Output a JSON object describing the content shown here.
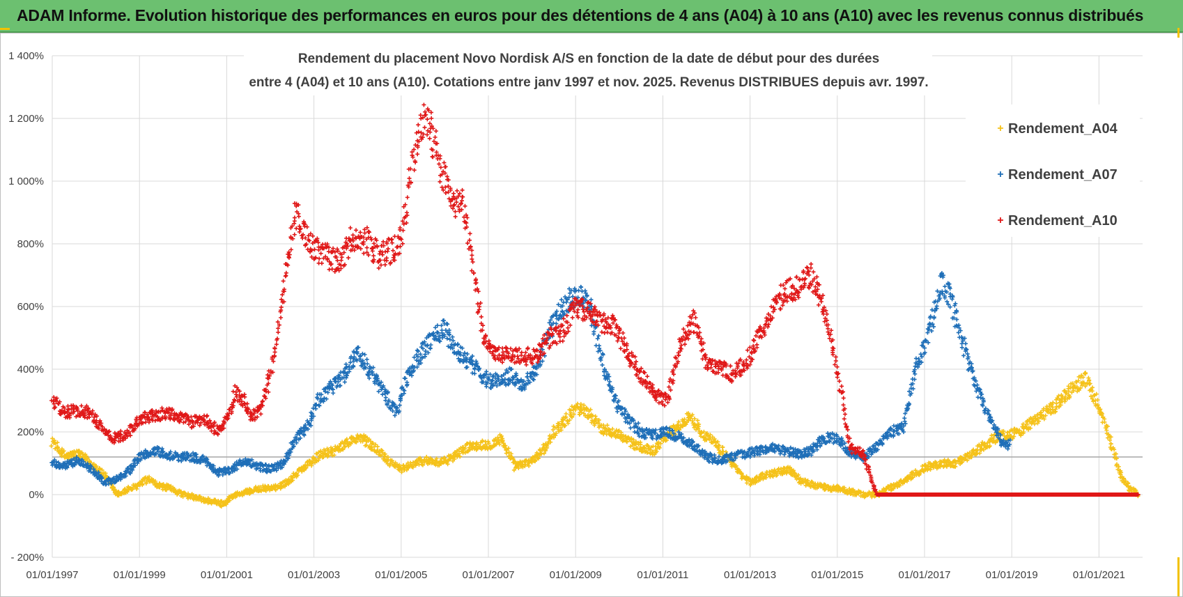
{
  "banner": {
    "title": "ADAM Informe. Evolution historique des performances en euros pour des détentions de 4 ans (A04) à 10 ans (A10) avec les revenus connus distribués"
  },
  "colors": {
    "banner_bg": "#6cc070",
    "A04": "#f5c21a",
    "A07": "#1f6fb8",
    "A10": "#e01818",
    "grid": "#d9d9d9",
    "baseline": "#a6a6a6"
  },
  "chart_data": {
    "type": "scatter",
    "title_lines": [
      "Rendement du placement Novo Nordisk A/S en fonction de la date de début pour des durées",
      "entre 4 (A04) et 10 ans (A10). Cotations entre janv 1997 et nov. 2025. Revenus DISTRIBUES depuis avr. 1997."
    ],
    "xlabel": "",
    "ylabel": "",
    "xlim": [
      1997.0,
      2022.0
    ],
    "ylim": [
      -200,
      1400
    ],
    "x_ticks": [
      1997,
      1999,
      2001,
      2003,
      2005,
      2007,
      2009,
      2011,
      2013,
      2015,
      2017,
      2019,
      2021
    ],
    "x_tick_labels": [
      "01/01/1997",
      "01/01/1999",
      "01/01/2001",
      "01/01/2003",
      "01/01/2005",
      "01/01/2007",
      "01/01/2009",
      "01/01/2011",
      "01/01/2013",
      "01/01/2015",
      "01/01/2017",
      "01/01/2019",
      "01/01/2021"
    ],
    "y_ticks": [
      -200,
      0,
      200,
      400,
      600,
      800,
      1000,
      1200,
      1400
    ],
    "y_tick_labels": [
      "- 200%",
      "0%",
      "200%",
      "400%",
      "600%",
      "800%",
      "1 000%",
      "1 200%",
      "1 400%"
    ],
    "reference_line": {
      "y": 120
    },
    "grid": true,
    "legend_position": "top-right",
    "marker": "+",
    "series": [
      {
        "name": "Rendement_A04",
        "color": "#f5c21a",
        "points": [
          [
            1997.0,
            170
          ],
          [
            1997.3,
            120
          ],
          [
            1997.6,
            130
          ],
          [
            1997.9,
            100
          ],
          [
            1998.2,
            60
          ],
          [
            1998.5,
            0
          ],
          [
            1998.8,
            20
          ],
          [
            1999.0,
            30
          ],
          [
            1999.2,
            50
          ],
          [
            1999.4,
            30
          ],
          [
            1999.7,
            20
          ],
          [
            2000.0,
            0
          ],
          [
            2000.3,
            -10
          ],
          [
            2000.6,
            -20
          ],
          [
            2000.9,
            -30
          ],
          [
            2001.2,
            0
          ],
          [
            2001.5,
            10
          ],
          [
            2001.8,
            20
          ],
          [
            2002.1,
            20
          ],
          [
            2002.4,
            40
          ],
          [
            2002.7,
            80
          ],
          [
            2003.0,
            110
          ],
          [
            2003.2,
            130
          ],
          [
            2003.5,
            140
          ],
          [
            2003.8,
            170
          ],
          [
            2004.1,
            180
          ],
          [
            2004.4,
            150
          ],
          [
            2004.7,
            110
          ],
          [
            2005.0,
            80
          ],
          [
            2005.3,
            100
          ],
          [
            2005.6,
            110
          ],
          [
            2005.9,
            100
          ],
          [
            2006.2,
            120
          ],
          [
            2006.5,
            150
          ],
          [
            2006.8,
            160
          ],
          [
            2007.1,
            160
          ],
          [
            2007.3,
            180
          ],
          [
            2007.6,
            90
          ],
          [
            2007.9,
            100
          ],
          [
            2008.2,
            130
          ],
          [
            2008.5,
            200
          ],
          [
            2008.8,
            240
          ],
          [
            2009.0,
            280
          ],
          [
            2009.3,
            260
          ],
          [
            2009.6,
            210
          ],
          [
            2009.9,
            200
          ],
          [
            2010.2,
            170
          ],
          [
            2010.5,
            150
          ],
          [
            2010.8,
            140
          ],
          [
            2011.0,
            180
          ],
          [
            2011.3,
            210
          ],
          [
            2011.6,
            250
          ],
          [
            2011.9,
            200
          ],
          [
            2012.2,
            160
          ],
          [
            2012.5,
            120
          ],
          [
            2012.8,
            60
          ],
          [
            2013.0,
            40
          ],
          [
            2013.3,
            60
          ],
          [
            2013.6,
            70
          ],
          [
            2013.9,
            80
          ],
          [
            2014.2,
            40
          ],
          [
            2014.5,
            30
          ],
          [
            2014.8,
            20
          ],
          [
            2015.0,
            20
          ],
          [
            2015.3,
            10
          ],
          [
            2015.6,
            0
          ],
          [
            2015.9,
            0
          ],
          [
            2016.2,
            20
          ],
          [
            2016.5,
            40
          ],
          [
            2016.8,
            70
          ],
          [
            2017.1,
            90
          ],
          [
            2017.4,
            100
          ],
          [
            2017.7,
            100
          ],
          [
            2018.0,
            120
          ],
          [
            2018.3,
            150
          ],
          [
            2018.6,
            180
          ],
          [
            2018.9,
            190
          ],
          [
            2019.2,
            200
          ],
          [
            2019.5,
            240
          ],
          [
            2019.8,
            260
          ],
          [
            2020.1,
            300
          ],
          [
            2020.4,
            340
          ],
          [
            2020.7,
            370
          ],
          [
            2021.0,
            280
          ],
          [
            2021.2,
            200
          ],
          [
            2021.5,
            60
          ],
          [
            2021.7,
            20
          ],
          [
            2021.9,
            0
          ]
        ]
      },
      {
        "name": "Rendement_A07",
        "color": "#1f6fb8",
        "points": [
          [
            1997.0,
            100
          ],
          [
            1997.3,
            90
          ],
          [
            1997.6,
            110
          ],
          [
            1997.9,
            80
          ],
          [
            1998.2,
            40
          ],
          [
            1998.5,
            50
          ],
          [
            1998.8,
            80
          ],
          [
            1999.0,
            120
          ],
          [
            1999.3,
            140
          ],
          [
            1999.6,
            130
          ],
          [
            1999.9,
            120
          ],
          [
            2000.2,
            120
          ],
          [
            2000.5,
            110
          ],
          [
            2000.8,
            70
          ],
          [
            2001.1,
            80
          ],
          [
            2001.4,
            110
          ],
          [
            2001.7,
            90
          ],
          [
            2002.0,
            80
          ],
          [
            2002.3,
            100
          ],
          [
            2002.6,
            180
          ],
          [
            2002.9,
            230
          ],
          [
            2003.1,
            300
          ],
          [
            2003.4,
            340
          ],
          [
            2003.7,
            380
          ],
          [
            2004.0,
            450
          ],
          [
            2004.3,
            390
          ],
          [
            2004.6,
            330
          ],
          [
            2004.9,
            260
          ],
          [
            2005.1,
            360
          ],
          [
            2005.4,
            440
          ],
          [
            2005.7,
            500
          ],
          [
            2006.0,
            530
          ],
          [
            2006.3,
            450
          ],
          [
            2006.6,
            420
          ],
          [
            2006.9,
            370
          ],
          [
            2007.2,
            360
          ],
          [
            2007.5,
            380
          ],
          [
            2007.8,
            350
          ],
          [
            2008.1,
            400
          ],
          [
            2008.4,
            520
          ],
          [
            2008.7,
            600
          ],
          [
            2009.0,
            640
          ],
          [
            2009.3,
            620
          ],
          [
            2009.6,
            430
          ],
          [
            2009.9,
            300
          ],
          [
            2010.2,
            240
          ],
          [
            2010.5,
            200
          ],
          [
            2010.8,
            190
          ],
          [
            2011.1,
            200
          ],
          [
            2011.4,
            180
          ],
          [
            2011.7,
            160
          ],
          [
            2012.0,
            120
          ],
          [
            2012.3,
            110
          ],
          [
            2012.6,
            120
          ],
          [
            2012.9,
            130
          ],
          [
            2013.2,
            140
          ],
          [
            2013.5,
            150
          ],
          [
            2013.8,
            140
          ],
          [
            2014.1,
            130
          ],
          [
            2014.4,
            140
          ],
          [
            2014.7,
            180
          ],
          [
            2015.0,
            180
          ],
          [
            2015.3,
            130
          ],
          [
            2015.6,
            120
          ],
          [
            2015.9,
            150
          ],
          [
            2016.2,
            200
          ],
          [
            2016.5,
            210
          ],
          [
            2016.8,
            400
          ],
          [
            2017.1,
            520
          ],
          [
            2017.4,
            680
          ],
          [
            2017.6,
            620
          ],
          [
            2017.9,
            470
          ],
          [
            2018.2,
            340
          ],
          [
            2018.5,
            240
          ],
          [
            2018.8,
            160
          ],
          [
            2018.95,
            160
          ]
        ]
      },
      {
        "name": "Rendement_A10",
        "color": "#e01818",
        "points": [
          [
            1997.0,
            300
          ],
          [
            1997.3,
            260
          ],
          [
            1997.6,
            270
          ],
          [
            1997.9,
            260
          ],
          [
            1998.1,
            220
          ],
          [
            1998.4,
            180
          ],
          [
            1998.7,
            190
          ],
          [
            1999.0,
            240
          ],
          [
            1999.3,
            250
          ],
          [
            1999.6,
            260
          ],
          [
            1999.9,
            250
          ],
          [
            2000.2,
            230
          ],
          [
            2000.5,
            240
          ],
          [
            2000.8,
            200
          ],
          [
            2001.0,
            240
          ],
          [
            2001.2,
            330
          ],
          [
            2001.4,
            300
          ],
          [
            2001.6,
            250
          ],
          [
            2001.8,
            280
          ],
          [
            2002.0,
            380
          ],
          [
            2002.2,
            550
          ],
          [
            2002.4,
            740
          ],
          [
            2002.6,
            900
          ],
          [
            2002.8,
            820
          ],
          [
            2003.0,
            780
          ],
          [
            2003.3,
            760
          ],
          [
            2003.6,
            740
          ],
          [
            2003.9,
            820
          ],
          [
            2004.2,
            810
          ],
          [
            2004.5,
            760
          ],
          [
            2004.8,
            780
          ],
          [
            2005.0,
            820
          ],
          [
            2005.2,
            1000
          ],
          [
            2005.4,
            1150
          ],
          [
            2005.6,
            1200
          ],
          [
            2005.8,
            1100
          ],
          [
            2006.0,
            1000
          ],
          [
            2006.2,
            920
          ],
          [
            2006.4,
            940
          ],
          [
            2006.6,
            750
          ],
          [
            2006.9,
            500
          ],
          [
            2007.2,
            440
          ],
          [
            2007.5,
            450
          ],
          [
            2007.8,
            440
          ],
          [
            2008.1,
            440
          ],
          [
            2008.4,
            500
          ],
          [
            2008.7,
            520
          ],
          [
            2009.0,
            600
          ],
          [
            2009.3,
            580
          ],
          [
            2009.6,
            550
          ],
          [
            2009.9,
            540
          ],
          [
            2010.2,
            450
          ],
          [
            2010.5,
            380
          ],
          [
            2010.8,
            320
          ],
          [
            2011.1,
            300
          ],
          [
            2011.4,
            480
          ],
          [
            2011.7,
            560
          ],
          [
            2012.0,
            420
          ],
          [
            2012.3,
            410
          ],
          [
            2012.6,
            380
          ],
          [
            2012.9,
            420
          ],
          [
            2013.2,
            500
          ],
          [
            2013.5,
            580
          ],
          [
            2013.8,
            650
          ],
          [
            2014.1,
            660
          ],
          [
            2014.4,
            700
          ],
          [
            2014.7,
            600
          ],
          [
            2015.0,
            400
          ],
          [
            2015.3,
            150
          ],
          [
            2015.6,
            130
          ],
          [
            2015.9,
            0
          ],
          [
            2017.0,
            0
          ],
          [
            2018.0,
            0
          ],
          [
            2019.0,
            0
          ],
          [
            2020.0,
            0
          ],
          [
            2021.0,
            0
          ],
          [
            2021.9,
            0
          ]
        ]
      }
    ]
  }
}
